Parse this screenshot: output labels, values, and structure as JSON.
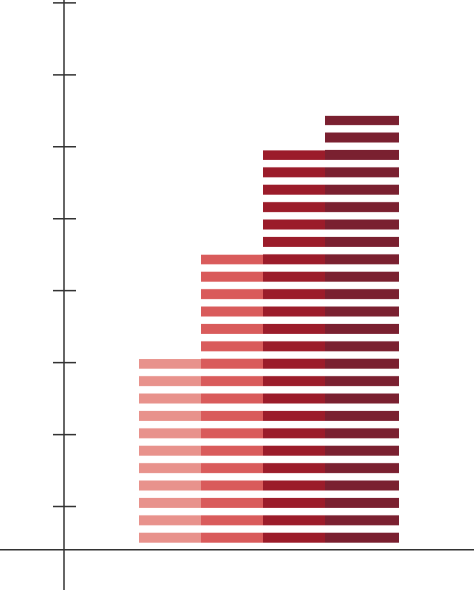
{
  "chart_data": {
    "type": "bar",
    "categories": [
      null,
      null,
      null,
      null
    ],
    "values": [
      2.65,
      4.1,
      5.55,
      6.03
    ],
    "colors": [
      "#e8928c",
      "#d95b5b",
      "#9b1c2a",
      "#7a2030"
    ],
    "ylim": [
      -0.56,
      7.64
    ],
    "yticks": [
      0.6,
      1.6,
      2.6,
      3.6,
      4.6,
      5.6,
      6.6,
      7.6
    ],
    "striped": true
  }
}
